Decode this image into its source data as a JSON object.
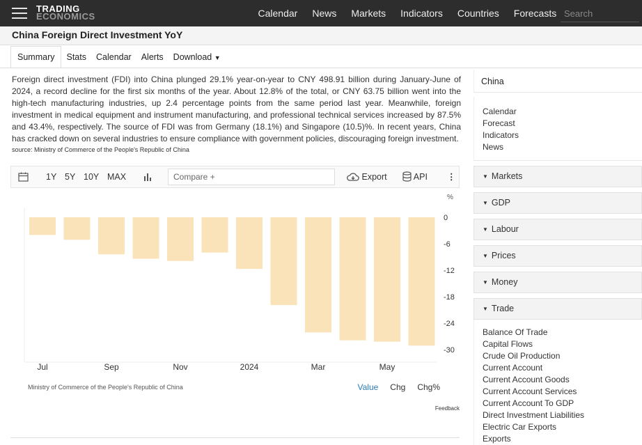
{
  "header": {
    "logo_line1": "TRADING",
    "logo_line2": "ECONOMICS",
    "nav": [
      "Calendar",
      "News",
      "Markets",
      "Indicators",
      "Countries",
      "Forecasts"
    ],
    "search_placeholder": "Search"
  },
  "page_title": "China Foreign Direct Investment YoY",
  "tabs": [
    "Summary",
    "Stats",
    "Calendar",
    "Alerts",
    "Download"
  ],
  "description": "Foreign direct investment (FDI) into China plunged 29.1% year-on-year to CNY 498.91 billion during January-June of 2024, a record decline for the first six months of the year. About 12.8% of the total, or CNY 63.75 billion went into the high-tech manufacturing industries, up 2.4 percentage points from the same period last year. Meanwhile, foreign investment in medical equipment and instrument manufacturing, and professional technical services increased by 87.5% and 43.4%, respectively. The source of FDI was from Germany (18.1%) and Singapore (10.5)%. In recent years, China has cracked down on several industries to ensure compliance with government policies, discouraging foreign investment.",
  "source": "source: Ministry of Commerce of the People's Republic of China",
  "chart_toolbar": {
    "ranges": [
      "1Y",
      "5Y",
      "10Y",
      "MAX"
    ],
    "compare_placeholder": "Compare +",
    "export_label": "Export",
    "api_label": "API",
    "icons": [
      "calendar-icon",
      "bar-chart-icon",
      "cloud-download-icon",
      "database-icon",
      "more-vertical-icon"
    ]
  },
  "chart_data": {
    "type": "bar",
    "unit_label": "%",
    "values": [
      -4.0,
      -5.1,
      -8.4,
      -9.4,
      -9.9,
      -8.0,
      -11.7,
      -19.9,
      -26.1,
      -27.9,
      -28.2,
      -29.1
    ],
    "x_tick_labels": [
      "Jul",
      "Sep",
      "Nov",
      "2024",
      "Mar",
      "May"
    ],
    "y_ticks": [
      0,
      -6,
      -12,
      -18,
      -24,
      -30
    ],
    "ylim": [
      -31,
      1.5
    ],
    "bar_color": "#fbe3b9",
    "grid": false
  },
  "chart_footer": {
    "source": "Ministry of Commerce of the People's Republic of China",
    "modes": [
      "Value",
      "Chg",
      "Chg%"
    ],
    "active_mode": "Value",
    "feedback": "Feedback"
  },
  "sidebar": {
    "country": "China",
    "links": [
      "Calendar",
      "Forecast",
      "Indicators",
      "News"
    ],
    "sections": [
      "Markets",
      "GDP",
      "Labour",
      "Prices",
      "Money",
      "Trade"
    ],
    "trade_items": [
      "Balance Of Trade",
      "Capital Flows",
      "Crude Oil Production",
      "Current Account",
      "Current Account Goods",
      "Current Account Services",
      "Current Account To GDP",
      "Direct Investment Liabilities",
      "Electric Car Exports",
      "Exports"
    ]
  },
  "colors": {
    "accent": "#2b7bb9",
    "header_bg": "#2d2d2d",
    "bar": "#fbe3b9"
  }
}
